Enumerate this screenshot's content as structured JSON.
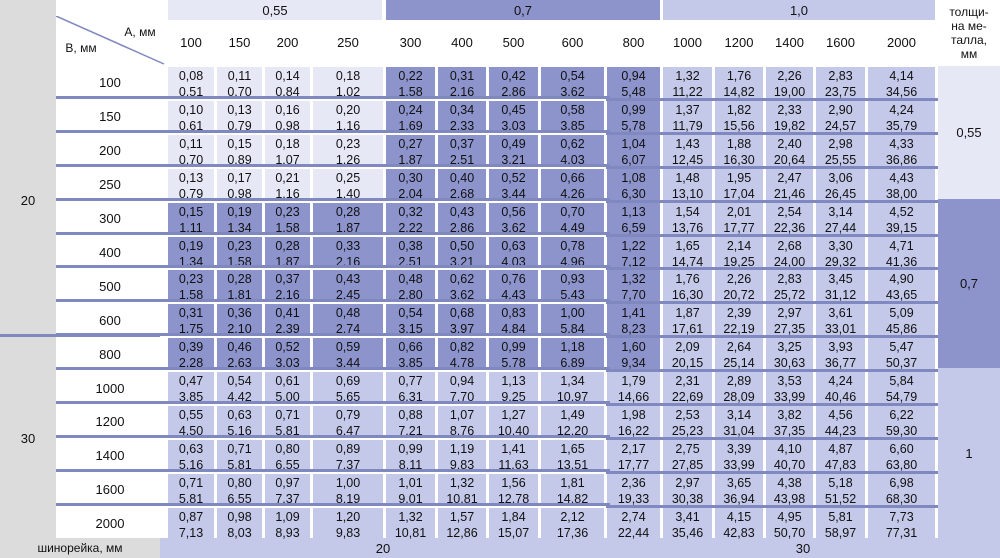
{
  "header": {
    "groups": [
      "0,55",
      "0,7",
      "1,0"
    ],
    "a_label": "A, мм",
    "b_label": "B, мм",
    "thickness_title": "толщи-\nна ме-\nталла,\nмм",
    "a_values": [
      "100",
      "150",
      "200",
      "250",
      "300",
      "400",
      "500",
      "600",
      "800",
      "1000",
      "1200",
      "1400",
      "1600",
      "2000"
    ]
  },
  "rows": [
    {
      "b": "100",
      "top": [
        "0,08",
        "0,11",
        "0,14",
        "0,18",
        "0,22",
        "0,31",
        "0,42",
        "0,54",
        "0,94",
        "1,32",
        "1,76",
        "2,26",
        "2,83",
        "4,14"
      ],
      "bot": [
        "0,51",
        "0,70",
        "0,84",
        "1,02",
        "1,58",
        "2,16",
        "2,86",
        "3,62",
        "5,48",
        "11,22",
        "14,82",
        "19,00",
        "23,75",
        "34,56"
      ]
    },
    {
      "b": "150",
      "top": [
        "0,10",
        "0,13",
        "0,16",
        "0,20",
        "0,24",
        "0,34",
        "0,45",
        "0,58",
        "0,99",
        "1,37",
        "1,82",
        "2,33",
        "2,90",
        "4,24"
      ],
      "bot": [
        "0,61",
        "0,79",
        "0,98",
        "1,16",
        "1,69",
        "2,33",
        "3,03",
        "3,85",
        "5,78",
        "11,79",
        "15,56",
        "19,82",
        "24,57",
        "35,79"
      ]
    },
    {
      "b": "200",
      "top": [
        "0,11",
        "0,15",
        "0,18",
        "0,23",
        "0,27",
        "0,37",
        "0,49",
        "0,62",
        "1,04",
        "1,43",
        "1,88",
        "2,40",
        "2,98",
        "4,33"
      ],
      "bot": [
        "0,70",
        "0,89",
        "1,07",
        "1,26",
        "1,87",
        "2,51",
        "3,21",
        "4,03",
        "6,07",
        "12,45",
        "16,30",
        "20,64",
        "25,55",
        "36,86"
      ]
    },
    {
      "b": "250",
      "top": [
        "0,13",
        "0,17",
        "0,21",
        "0,25",
        "0,30",
        "0,40",
        "0,52",
        "0,66",
        "1,08",
        "1,48",
        "1,95",
        "2,47",
        "3,06",
        "4,43"
      ],
      "bot": [
        "0,79",
        "0,98",
        "1,16",
        "1,40",
        "2,04",
        "2,68",
        "3,44",
        "4,26",
        "6,30",
        "13,10",
        "17,04",
        "21,46",
        "26,45",
        "38,00"
      ]
    },
    {
      "b": "300",
      "top": [
        "0,15",
        "0,19",
        "0,23",
        "0,28",
        "0,32",
        "0,43",
        "0,56",
        "0,70",
        "1,13",
        "1,54",
        "2,01",
        "2,54",
        "3,14",
        "4,52"
      ],
      "bot": [
        "1,11",
        "1,34",
        "1,58",
        "1,87",
        "2,22",
        "2,86",
        "3,62",
        "4,49",
        "6,59",
        "13,76",
        "17,77",
        "22,36",
        "27,44",
        "39,15"
      ]
    },
    {
      "b": "400",
      "top": [
        "0,19",
        "0,23",
        "0,28",
        "0,33",
        "0,38",
        "0,50",
        "0,63",
        "0,78",
        "1,22",
        "1,65",
        "2,14",
        "2,68",
        "3,30",
        "4,71"
      ],
      "bot": [
        "1,34",
        "1,58",
        "1,87",
        "2,16",
        "2,51",
        "3,21",
        "4,03",
        "4,96",
        "7,12",
        "14,74",
        "19,25",
        "24,00",
        "29,32",
        "41,36"
      ]
    },
    {
      "b": "500",
      "top": [
        "0,23",
        "0,28",
        "0,37",
        "0,43",
        "0,48",
        "0,62",
        "0,76",
        "0,93",
        "1,32",
        "1,76",
        "2,26",
        "2,83",
        "3,45",
        "4,90"
      ],
      "bot": [
        "1,58",
        "1,81",
        "2,16",
        "2,45",
        "2,80",
        "3,62",
        "4,43",
        "5,43",
        "7,70",
        "16,30",
        "20,72",
        "25,72",
        "31,12",
        "43,65"
      ]
    },
    {
      "b": "600",
      "top": [
        "0,31",
        "0,36",
        "0,41",
        "0,48",
        "0,54",
        "0,68",
        "0,83",
        "1,00",
        "1,41",
        "1,87",
        "2,39",
        "2,97",
        "3,61",
        "5,09"
      ],
      "bot": [
        "1,75",
        "2,10",
        "2,39",
        "2,74",
        "3,15",
        "3,97",
        "4,84",
        "5,84",
        "8,23",
        "17,61",
        "22,19",
        "27,35",
        "33,01",
        "45,86"
      ]
    },
    {
      "b": "800",
      "top": [
        "0,39",
        "0,46",
        "0,52",
        "0,59",
        "0,66",
        "0,82",
        "0,99",
        "1,18",
        "1,60",
        "2,09",
        "2,64",
        "3,25",
        "3,93",
        "5,47"
      ],
      "bot": [
        "2,28",
        "2,63",
        "3,03",
        "3,44",
        "3,85",
        "4,78",
        "5,78",
        "6,89",
        "9,34",
        "20,15",
        "25,14",
        "30,63",
        "36,77",
        "50,37"
      ]
    },
    {
      "b": "1000",
      "top": [
        "0,47",
        "0,54",
        "0,61",
        "0,69",
        "0,77",
        "0,94",
        "1,13",
        "1,34",
        "1,79",
        "2,31",
        "2,89",
        "3,53",
        "4,24",
        "5,84"
      ],
      "bot": [
        "3,85",
        "4,42",
        "5,00",
        "5,65",
        "6,31",
        "7,70",
        "9,25",
        "10,97",
        "14,66",
        "22,69",
        "28,09",
        "33,99",
        "40,46",
        "54,79"
      ]
    },
    {
      "b": "1200",
      "top": [
        "0,55",
        "0,63",
        "0,71",
        "0,79",
        "0,88",
        "1,07",
        "1,27",
        "1,49",
        "1,98",
        "2,53",
        "3,14",
        "3,82",
        "4,56",
        "6,22"
      ],
      "bot": [
        "4,50",
        "5,16",
        "5,81",
        "6,47",
        "7,21",
        "8,76",
        "10,40",
        "12,20",
        "16,22",
        "25,23",
        "31,04",
        "37,35",
        "44,23",
        "59,30"
      ]
    },
    {
      "b": "1400",
      "top": [
        "0,63",
        "0,71",
        "0,80",
        "0,89",
        "0,99",
        "1,19",
        "1,41",
        "1,65",
        "2,17",
        "2,75",
        "3,39",
        "4,10",
        "4,87",
        "6,60"
      ],
      "bot": [
        "5,16",
        "5,81",
        "6,55",
        "7,37",
        "8,11",
        "9,83",
        "11,63",
        "13,51",
        "17,77",
        "27,85",
        "33,99",
        "40,70",
        "47,83",
        "63,80"
      ]
    },
    {
      "b": "1600",
      "top": [
        "0,71",
        "0,80",
        "0,97",
        "1,00",
        "1,01",
        "1,32",
        "1,56",
        "1,81",
        "2,36",
        "2,97",
        "3,65",
        "4,38",
        "5,18",
        "6,98"
      ],
      "bot": [
        "5,81",
        "6,55",
        "7,37",
        "8,19",
        "9,01",
        "10,81",
        "12,78",
        "14,82",
        "19,33",
        "30,38",
        "36,94",
        "43,98",
        "51,52",
        "68,30"
      ]
    },
    {
      "b": "2000",
      "top": [
        "0,87",
        "0,98",
        "1,09",
        "1,20",
        "1,32",
        "1,57",
        "1,84",
        "2,12",
        "2,74",
        "3,41",
        "4,15",
        "4,95",
        "5,81",
        "7,73"
      ],
      "bot": [
        "7,13",
        "8,03",
        "8,93",
        "9,83",
        "10,81",
        "12,86",
        "15,07",
        "17,36",
        "22,44",
        "35,46",
        "42,83",
        "50,70",
        "58,97",
        "77,31"
      ]
    }
  ],
  "left_groups": [
    "20",
    "30"
  ],
  "thickness_values": [
    "0,55",
    "0,7",
    "1"
  ],
  "footer": {
    "label": "шинорейка, мм",
    "values": [
      "20",
      "30"
    ]
  },
  "colors": {
    "light": "#e6e8f6",
    "mid": "#c5c9e9",
    "dark": "#8d94cc",
    "sep": "#8088c0",
    "gray": "#dcdcdc"
  }
}
